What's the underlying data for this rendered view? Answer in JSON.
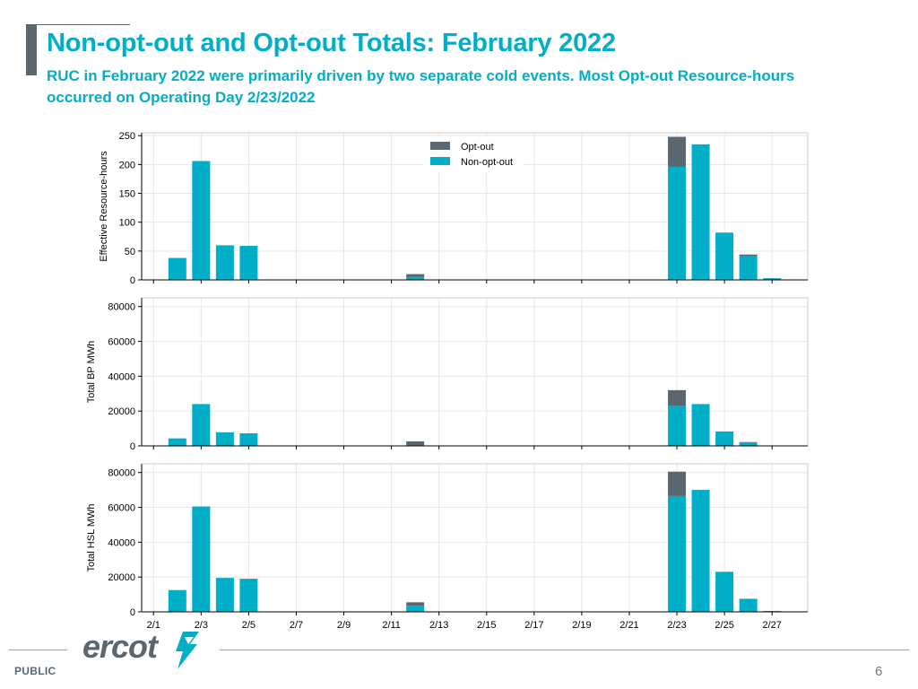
{
  "header": {
    "title": "Non-opt-out and Opt-out Totals: February 2022",
    "subtitle": "RUC in February 2022 were primarily driven by two separate cold events. Most Opt-out Resource-hours occurred on Operating Day 2/23/2022"
  },
  "footer": {
    "classification": "PUBLIC",
    "page_number": "6",
    "logo_text": "ercot"
  },
  "colors": {
    "opt_out": "#5b6770",
    "non_opt_out": "#00aec7",
    "grid": "#e6e6e6",
    "axis": "#000000"
  },
  "chart_data": [
    {
      "type": "bar",
      "stacked": true,
      "ylabel": "Effective Resource-hours",
      "ylim": [
        0,
        255
      ],
      "yticks": [
        0,
        50,
        100,
        150,
        200,
        250
      ],
      "grid": true,
      "legend": "top-center",
      "x": [
        2,
        3,
        4,
        5,
        12,
        23,
        24,
        25,
        26,
        27
      ],
      "series": [
        {
          "name": "Opt-out",
          "color": "#5b6770",
          "values": [
            0,
            0,
            0,
            0,
            5,
            52,
            0,
            0,
            3,
            0
          ]
        },
        {
          "name": "Non-opt-out",
          "color": "#00aec7",
          "values": [
            38,
            206,
            60,
            59,
            5,
            196,
            235,
            82,
            41,
            3
          ]
        }
      ]
    },
    {
      "type": "bar",
      "stacked": true,
      "ylabel": "Total BP MWh",
      "ylim": [
        0,
        85000
      ],
      "yticks": [
        0,
        20000,
        40000,
        60000,
        80000
      ],
      "grid": true,
      "x": [
        2,
        3,
        4,
        5,
        12,
        23,
        24,
        25,
        26,
        27
      ],
      "series": [
        {
          "name": "Opt-out",
          "color": "#5b6770",
          "values": [
            0,
            0,
            0,
            0,
            2300,
            9000,
            0,
            0,
            200,
            0
          ]
        },
        {
          "name": "Non-opt-out",
          "color": "#00aec7",
          "values": [
            4300,
            24000,
            7800,
            7200,
            300,
            23000,
            24000,
            8300,
            2000,
            0
          ]
        }
      ]
    },
    {
      "type": "bar",
      "stacked": true,
      "ylabel": "Total HSL MWh",
      "ylim": [
        0,
        85000
      ],
      "yticks": [
        0,
        20000,
        40000,
        60000,
        80000
      ],
      "grid": true,
      "x": [
        2,
        3,
        4,
        5,
        12,
        23,
        24,
        25,
        26,
        27
      ],
      "xticks": [
        1,
        3,
        5,
        7,
        9,
        11,
        13,
        15,
        17,
        19,
        21,
        23,
        25,
        27
      ],
      "xtick_labels": [
        "2/1",
        "2/3",
        "2/5",
        "2/7",
        "2/9",
        "2/11",
        "2/13",
        "2/15",
        "2/17",
        "2/19",
        "2/21",
        "2/23",
        "2/25",
        "2/27"
      ],
      "xlim": [
        0.5,
        28.5
      ],
      "series": [
        {
          "name": "Opt-out",
          "color": "#5b6770",
          "values": [
            0,
            0,
            0,
            0,
            2000,
            14000,
            0,
            0,
            0,
            0
          ]
        },
        {
          "name": "Non-opt-out",
          "color": "#00aec7",
          "values": [
            12500,
            60500,
            19500,
            19000,
            3500,
            66500,
            70000,
            23000,
            7500,
            500
          ]
        }
      ]
    }
  ]
}
